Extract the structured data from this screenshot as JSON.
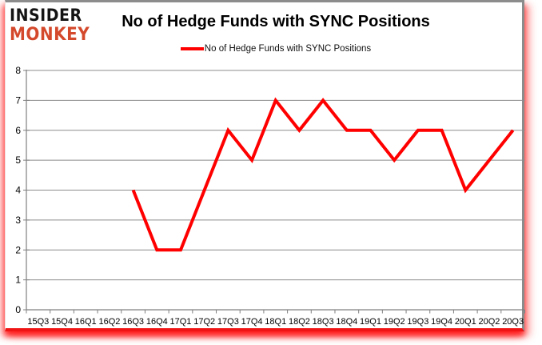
{
  "branding": {
    "line1": "INSIDER",
    "line2": "MONKEY",
    "line1_color": "#141414",
    "monkey_color": "#d4492c"
  },
  "header": {
    "title": "No of Hedge Funds with SYNC Positions"
  },
  "legend": {
    "label": "No of Hedge Funds with SYNC Positions",
    "line_color": "#ff0000"
  },
  "chart_data": {
    "type": "line",
    "title": "No of Hedge Funds with SYNC Positions",
    "xlabel": "",
    "ylabel": "",
    "categories": [
      "15Q3",
      "15Q4",
      "16Q1",
      "16Q2",
      "16Q3",
      "16Q4",
      "17Q1",
      "17Q2",
      "17Q3",
      "17Q4",
      "18Q1",
      "18Q2",
      "18Q3",
      "18Q4",
      "19Q1",
      "19Q2",
      "19Q3",
      "19Q4",
      "20Q1",
      "20Q2",
      "20Q3"
    ],
    "series": [
      {
        "name": "No of Hedge Funds with SYNC Positions",
        "color": "#ff0000",
        "values": [
          null,
          null,
          null,
          null,
          4,
          2,
          2,
          4,
          6,
          5,
          7,
          6,
          7,
          6,
          6,
          5,
          6,
          6,
          4,
          5,
          6
        ]
      }
    ],
    "ylim": [
      0,
      8
    ],
    "yticks": [
      0,
      1,
      2,
      3,
      4,
      5,
      6,
      7,
      8
    ],
    "grid": "horizontal",
    "grid_color": "#8c8c8c",
    "axis_color": "#808080",
    "legend_position": "top"
  }
}
